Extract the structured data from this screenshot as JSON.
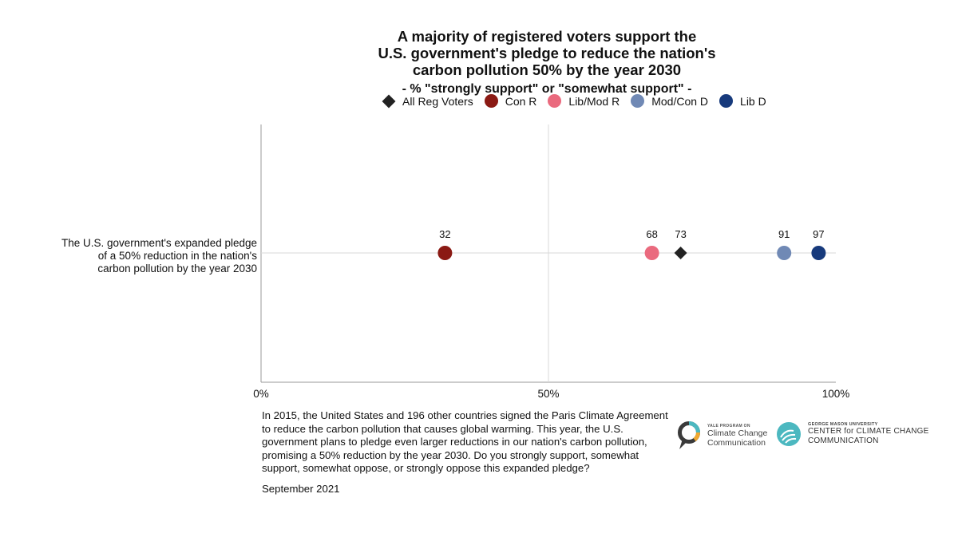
{
  "chart_data": {
    "type": "scatter",
    "title": "A majority of registered voters support the U.S. government's pledge to reduce the nation's carbon pollution 50% by the year 2030",
    "title_lines": [
      "A majority of registered voters support the",
      "U.S. government's pledge to reduce the nation's",
      "carbon pollution 50% by the year 2030"
    ],
    "subtitle": "- % \"strongly support\" or \"somewhat support\" -",
    "xlim": [
      0,
      100
    ],
    "x_ticks": [
      "0%",
      "50%",
      "100%"
    ],
    "x_tick_values": [
      0,
      50,
      100
    ],
    "grid": true,
    "legend_placement": "top",
    "categories": [
      "The U.S. government's expanded pledge of a 50% reduction in the nation's carbon pollution by the year 2030"
    ],
    "category_label_lines": [
      "The U.S. government's expanded pledge",
      "of a 50% reduction in the nation's",
      "carbon pollution by the year 2030"
    ],
    "series": [
      {
        "name": "All Reg Voters",
        "shape": "diamond",
        "color": "#222222",
        "values": [
          73
        ]
      },
      {
        "name": "Con R",
        "shape": "circle",
        "color": "#8b1a14",
        "values": [
          32
        ]
      },
      {
        "name": "Lib/Mod R",
        "shape": "circle",
        "color": "#ea6a7e",
        "values": [
          68
        ]
      },
      {
        "name": "Mod/Con D",
        "shape": "circle",
        "color": "#7089b5",
        "values": [
          91
        ]
      },
      {
        "name": "Lib D",
        "shape": "circle",
        "color": "#173a7c",
        "values": [
          97
        ]
      }
    ]
  },
  "legend": [
    {
      "label": "All Reg Voters",
      "shape": "diamond",
      "color": "#222222"
    },
    {
      "label": "Con R",
      "shape": "circle",
      "color": "#8b1a14"
    },
    {
      "label": "Lib/Mod R",
      "shape": "circle",
      "color": "#ea6a7e"
    },
    {
      "label": "Mod/Con D",
      "shape": "circle",
      "color": "#7089b5"
    },
    {
      "label": "Lib D",
      "shape": "circle",
      "color": "#173a7c"
    }
  ],
  "question_text": "In 2015, the United States and 196 other countries signed the Paris Climate Agreement to reduce the carbon pollution that causes global warming. This year, the U.S. government plans to pledge even larger reductions in our nation's carbon pollution, promising a 50% reduction by the year 2030. Do you strongly support, somewhat support, somewhat oppose, or strongly oppose this expanded pledge?",
  "date": "September 2021",
  "logos": {
    "yale_small": "YALE PROGRAM ON",
    "yale_line1": "Climate Change",
    "yale_line2": "Communication",
    "gmu_small": "GEORGE MASON UNIVERSITY",
    "gmu_line1": "CENTER for CLIMATE CHANGE",
    "gmu_line2": "COMMUNICATION"
  }
}
